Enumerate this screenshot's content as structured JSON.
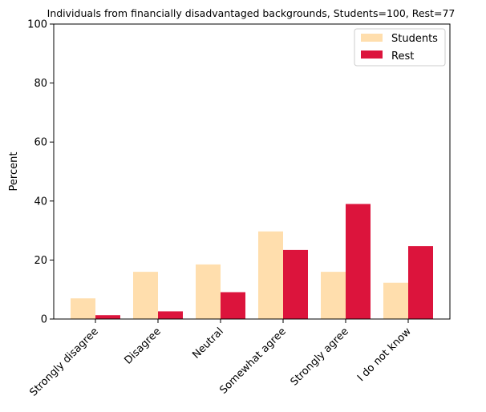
{
  "chart_data": {
    "type": "bar",
    "title": "Individuals from financially disadvantaged backgrounds, Students=100, Rest=77",
    "xlabel": "",
    "ylabel": "Percent",
    "ylim": [
      0,
      100
    ],
    "yticks": [
      "0",
      "20",
      "40",
      "60",
      "80",
      "100"
    ],
    "categories": [
      "Strongly disagree",
      "Disagree",
      "Neutral",
      "Somewhat agree",
      "Strongly agree",
      "I do not know"
    ],
    "series": [
      {
        "name": "Students",
        "color": "#ffdead",
        "values": [
          7.0,
          16.0,
          18.5,
          29.7,
          16.0,
          12.3
        ]
      },
      {
        "name": "Rest",
        "color": "#dc143c",
        "values": [
          1.3,
          2.6,
          9.1,
          23.4,
          39.0,
          24.7
        ]
      }
    ],
    "grid": false,
    "legend_position": "top-right"
  }
}
